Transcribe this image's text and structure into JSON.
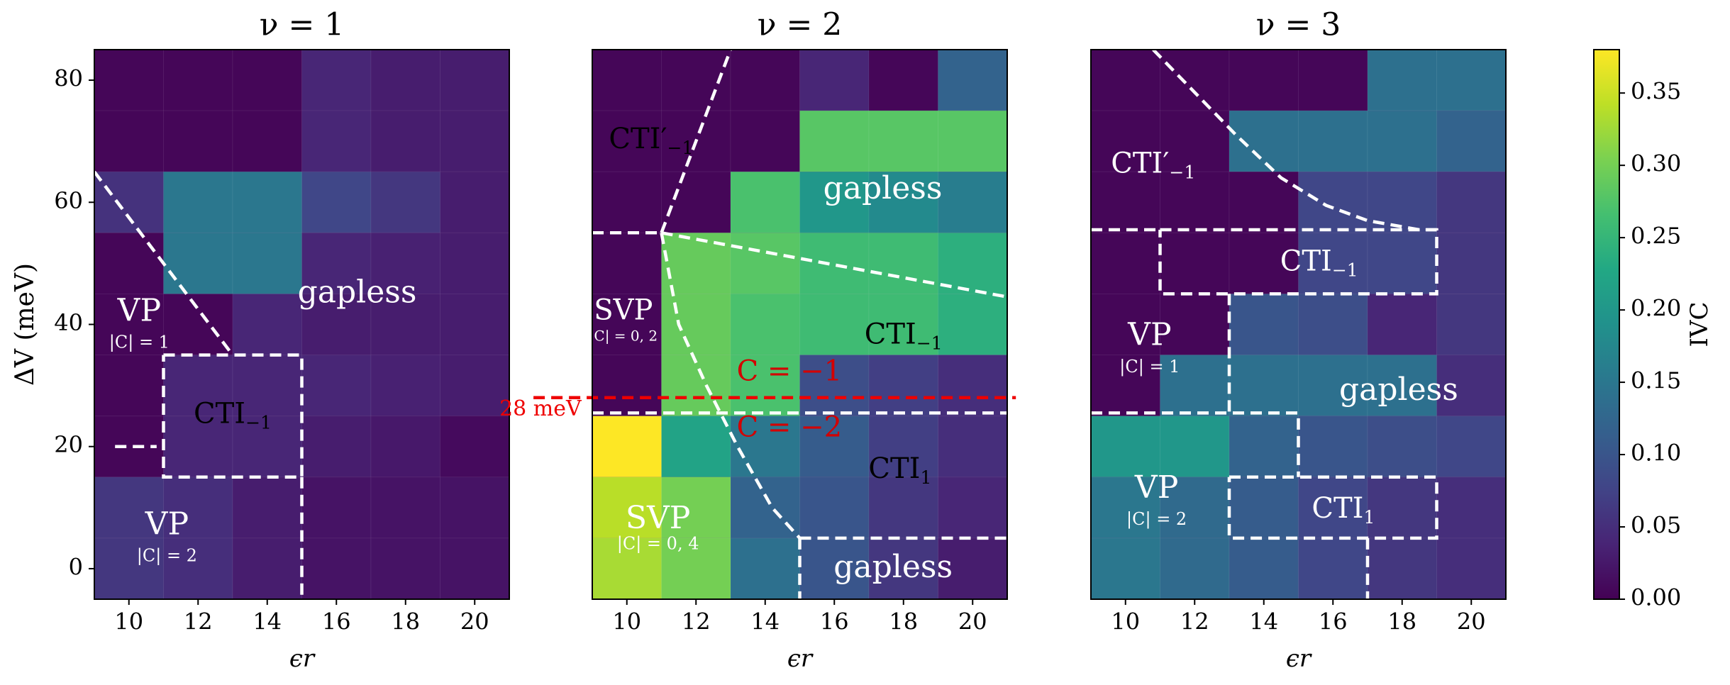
{
  "chart_data": {
    "type": "heatmap",
    "colorbar": {
      "label": "IVC",
      "min": 0.0,
      "max": 0.38,
      "ticks": [
        "0.00",
        "0.05",
        "0.10",
        "0.15",
        "0.20",
        "0.25",
        "0.30",
        "0.35"
      ]
    },
    "x_centers": [
      10,
      12,
      14,
      16,
      18,
      20
    ],
    "y_centers": [
      0,
      10,
      20,
      30,
      40,
      50,
      60,
      70,
      80
    ],
    "xlim": [
      9,
      21
    ],
    "ylim": [
      -5,
      85
    ],
    "xticks": [
      "10",
      "12",
      "14",
      "16",
      "18",
      "20"
    ],
    "yticks": [
      "0",
      "20",
      "40",
      "60",
      "80"
    ],
    "xlabel": "ϵr",
    "ylabel": "ΔV (meV)",
    "panels": [
      {
        "title": "ν = 1",
        "values": [
          [
            0.005,
            0.005,
            0.005,
            0.04,
            0.03,
            0.03
          ],
          [
            0.005,
            0.005,
            0.005,
            0.04,
            0.03,
            0.03
          ],
          [
            0.055,
            0.15,
            0.15,
            0.08,
            0.06,
            0.03
          ],
          [
            0.005,
            0.15,
            0.15,
            0.04,
            0.035,
            0.03
          ],
          [
            0.005,
            0.005,
            0.04,
            0.03,
            0.03,
            0.03
          ],
          [
            0.005,
            0.04,
            0.04,
            0.04,
            0.035,
            0.03
          ],
          [
            0.005,
            0.04,
            0.04,
            0.03,
            0.025,
            0.01
          ],
          [
            0.06,
            0.05,
            0.03,
            0.02,
            0.02,
            0.02
          ],
          [
            0.06,
            0.05,
            0.03,
            0.02,
            0.02,
            0.02
          ]
        ],
        "labels": [
          {
            "text": "gapless",
            "x": 16.6,
            "y": 45,
            "color": "#ffffff",
            "size": 44
          },
          {
            "text": "VP",
            "x": 10.3,
            "y": 42,
            "color": "#ffffff",
            "size": 44
          },
          {
            "text": "|C| = 1",
            "x": 10.3,
            "y": 37,
            "color": "#ffffff",
            "size": 24
          },
          {
            "text": "CTI",
            "sub": "−1",
            "x": 13,
            "y": 25,
            "color": "#000000",
            "size": 40
          },
          {
            "text": "VP",
            "x": 11.1,
            "y": 7,
            "color": "#ffffff",
            "size": 44
          },
          {
            "text": "|C| = 2",
            "x": 11.1,
            "y": 2,
            "color": "#ffffff",
            "size": 24
          }
        ],
        "lines": [
          {
            "points": [
              [
                9,
                65
              ],
              [
                13,
                35
              ]
            ],
            "color": "#ffffff"
          },
          {
            "points": [
              [
                11,
                35
              ],
              [
                15,
                35
              ],
              [
                15,
                15
              ],
              [
                11,
                15
              ],
              [
                11,
                35
              ]
            ],
            "color": "#ffffff"
          },
          {
            "points": [
              [
                9.6,
                20
              ],
              [
                10.8,
                20
              ]
            ],
            "color": "#ffffff"
          },
          {
            "points": [
              [
                15,
                15
              ],
              [
                15,
                -5
              ]
            ],
            "color": "#ffffff"
          }
        ]
      },
      {
        "title": "ν = 2",
        "values": [
          [
            0.005,
            0.005,
            0.005,
            0.04,
            0.005,
            0.12
          ],
          [
            0.005,
            0.005,
            0.005,
            0.28,
            0.28,
            0.28
          ],
          [
            0.005,
            0.005,
            0.27,
            0.2,
            0.18,
            0.16
          ],
          [
            0.005,
            0.29,
            0.28,
            0.26,
            0.26,
            0.24
          ],
          [
            0.005,
            0.29,
            0.27,
            0.26,
            0.26,
            0.24
          ],
          [
            0.005,
            0.29,
            0.27,
            0.09,
            0.07,
            0.05
          ],
          [
            0.38,
            0.22,
            0.15,
            0.11,
            0.07,
            0.05
          ],
          [
            0.34,
            0.3,
            0.12,
            0.1,
            0.06,
            0.04
          ],
          [
            0.33,
            0.3,
            0.14,
            0.1,
            0.06,
            0.03
          ]
        ],
        "labels": [
          {
            "text": "CTI′",
            "sub": "−1",
            "x": 10.7,
            "y": 70,
            "color": "#000000",
            "size": 40
          },
          {
            "text": "gapless",
            "x": 17.4,
            "y": 62,
            "color": "#ffffff",
            "size": 44
          },
          {
            "text": "SVP",
            "x": 9.9,
            "y": 42,
            "color": "#ffffff",
            "size": 40
          },
          {
            "text": "|C| = 0, 2",
            "x": 9.9,
            "y": 38,
            "color": "#ffffff",
            "size": 20
          },
          {
            "text": "CTI",
            "sub": "−1",
            "x": 18,
            "y": 38,
            "color": "#000000",
            "size": 40
          },
          {
            "text": "C = −1",
            "x": 14.7,
            "y": 32,
            "color": "#d40000",
            "size": 40
          },
          {
            "text": "C = −2",
            "x": 14.7,
            "y": 22.8,
            "color": "#d40000",
            "size": 40
          },
          {
            "text": "CTI",
            "sub": "1",
            "x": 17.9,
            "y": 16,
            "color": "#000000",
            "size": 40
          },
          {
            "text": "SVP",
            "x": 10.9,
            "y": 8,
            "color": "#ffffff",
            "size": 44
          },
          {
            "text": "|C| = 0, 4",
            "x": 10.9,
            "y": 4,
            "color": "#ffffff",
            "size": 24
          },
          {
            "text": "gapless",
            "x": 17.7,
            "y": 0,
            "color": "#ffffff",
            "size": 44
          }
        ],
        "annotation_28": "28 meV",
        "lines": [
          {
            "points": [
              [
                9,
                55
              ],
              [
                11,
                55
              ]
            ],
            "color": "#ffffff"
          },
          {
            "points": [
              [
                11,
                55
              ],
              [
                13,
                85
              ]
            ],
            "color": "#ffffff"
          },
          {
            "points": [
              [
                11,
                55
              ],
              [
                21,
                44.5
              ]
            ],
            "color": "#ffffff"
          },
          {
            "points": [
              [
                11,
                55
              ],
              [
                11.5,
                40
              ],
              [
                12.3,
                30
              ],
              [
                13.2,
                20
              ],
              [
                14.2,
                10
              ],
              [
                15,
                5
              ]
            ],
            "color": "#ffffff"
          },
          {
            "points": [
              [
                9,
                25.5
              ],
              [
                21,
                25.5
              ]
            ],
            "color": "#ffffff"
          },
          {
            "points": [
              [
                15,
                5
              ],
              [
                21,
                5
              ]
            ],
            "color": "#ffffff"
          },
          {
            "points": [
              [
                15,
                5
              ],
              [
                15,
                -5
              ]
            ],
            "color": "#ffffff"
          },
          {
            "points": [
              [
                7.3,
                28
              ],
              [
                21.25,
                28
              ]
            ],
            "color": "#ee0000"
          }
        ]
      },
      {
        "title": "ν = 3",
        "values": [
          [
            0.005,
            0.005,
            0.005,
            0.005,
            0.14,
            0.14
          ],
          [
            0.005,
            0.005,
            0.14,
            0.14,
            0.14,
            0.12
          ],
          [
            0.005,
            0.005,
            0.005,
            0.08,
            0.08,
            0.06
          ],
          [
            0.005,
            0.005,
            0.005,
            0.08,
            0.08,
            0.06
          ],
          [
            0.005,
            0.005,
            0.1,
            0.09,
            0.04,
            0.06
          ],
          [
            0.005,
            0.14,
            0.14,
            0.14,
            0.14,
            0.05
          ],
          [
            0.2,
            0.2,
            0.12,
            0.1,
            0.09,
            0.08
          ],
          [
            0.15,
            0.13,
            0.11,
            0.08,
            0.06,
            0.05
          ],
          [
            0.15,
            0.13,
            0.11,
            0.08,
            0.06,
            0.05
          ]
        ],
        "labels": [
          {
            "text": "CTI′",
            "sub": "−1",
            "x": 10.8,
            "y": 66,
            "color": "#ffffff",
            "size": 40
          },
          {
            "text": "CTI",
            "sub": "−1",
            "x": 15.6,
            "y": 50,
            "color": "#ffffff",
            "size": 40
          },
          {
            "text": "VP",
            "x": 10.7,
            "y": 38,
            "color": "#ffffff",
            "size": 44
          },
          {
            "text": "|C| = 1",
            "x": 10.7,
            "y": 33,
            "color": "#ffffff",
            "size": 24
          },
          {
            "text": "gapless",
            "x": 17.9,
            "y": 29,
            "color": "#ffffff",
            "size": 44
          },
          {
            "text": "CTI",
            "sub": "1",
            "x": 16.3,
            "y": 9.5,
            "color": "#ffffff",
            "size": 40
          },
          {
            "text": "VP",
            "x": 10.9,
            "y": 13,
            "color": "#ffffff",
            "size": 44
          },
          {
            "text": "|C| = 2",
            "x": 10.9,
            "y": 8,
            "color": "#ffffff",
            "size": 24
          }
        ],
        "lines": [
          {
            "points": [
              [
                10.8,
                85
              ],
              [
                12,
                78
              ],
              [
                13.2,
                71
              ],
              [
                14.5,
                64
              ],
              [
                15.8,
                59.5
              ],
              [
                17,
                57
              ],
              [
                18.5,
                55.5
              ],
              [
                19,
                55.5
              ]
            ],
            "color": "#ffffff"
          },
          {
            "points": [
              [
                9,
                55.5
              ],
              [
                11,
                55.5
              ]
            ],
            "color": "#ffffff"
          },
          {
            "points": [
              [
                11,
                55.5
              ],
              [
                19,
                55.5
              ],
              [
                19,
                45
              ],
              [
                11,
                45
              ],
              [
                11,
                55.5
              ]
            ],
            "color": "#ffffff"
          },
          {
            "points": [
              [
                13,
                45
              ],
              [
                13,
                25.5
              ]
            ],
            "color": "#ffffff"
          },
          {
            "points": [
              [
                9,
                25.5
              ],
              [
                15,
                25.5
              ],
              [
                15,
                15
              ]
            ],
            "color": "#ffffff"
          },
          {
            "points": [
              [
                13,
                15
              ],
              [
                19,
                15
              ],
              [
                19,
                5
              ],
              [
                13,
                5
              ],
              [
                13,
                15
              ]
            ],
            "color": "#ffffff"
          },
          {
            "points": [
              [
                17,
                5
              ],
              [
                17,
                -5
              ]
            ],
            "color": "#ffffff"
          }
        ]
      }
    ]
  }
}
